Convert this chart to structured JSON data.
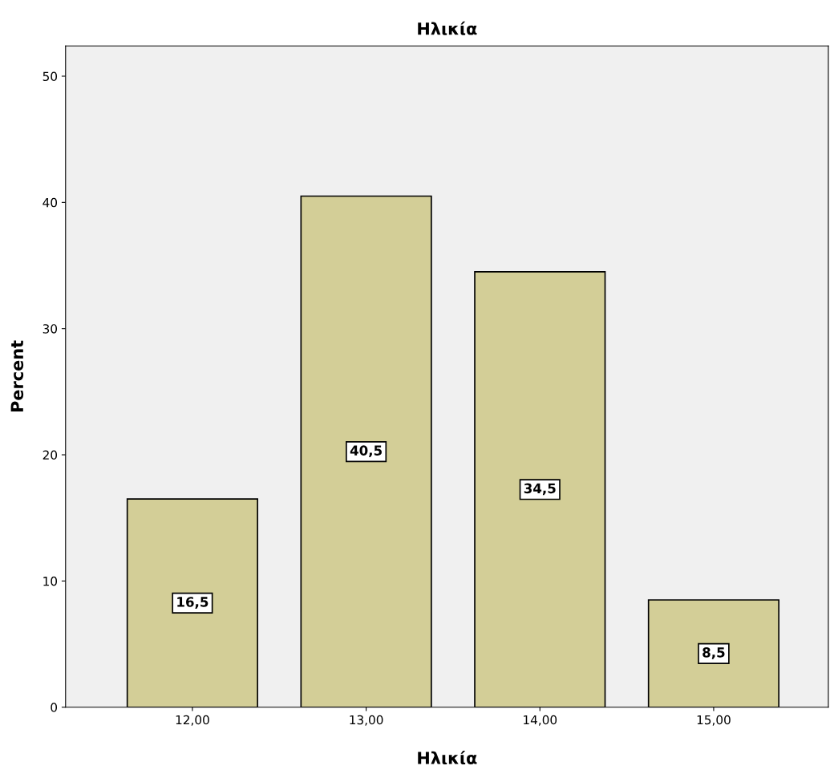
{
  "chart_data": {
    "type": "bar",
    "title": "Ηλικία",
    "xlabel": "Ηλικία",
    "ylabel": "Percent",
    "categories": [
      "12,00",
      "13,00",
      "14,00",
      "15,00"
    ],
    "values": [
      16.5,
      40.5,
      34.5,
      8.5
    ],
    "value_labels": [
      "16,5",
      "40,5",
      "34,5",
      "8,5"
    ],
    "color": "#d3ce97",
    "ylim": [
      0,
      52.4
    ],
    "yticks": [
      0,
      10,
      20,
      30,
      40,
      50
    ],
    "grid": false,
    "legend": false
  }
}
